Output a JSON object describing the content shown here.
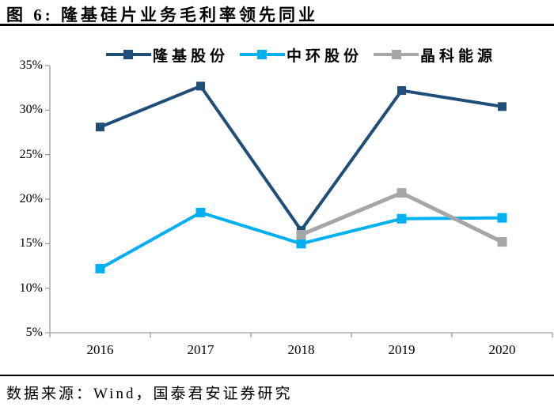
{
  "figure": {
    "title": "图 6:  隆基硅片业务毛利率领先同业",
    "source": "数据来源：Wind，国泰君安证券研究"
  },
  "chart_data": {
    "type": "line",
    "title": "隆基硅片业务毛利率领先同业",
    "categories": [
      "2016",
      "2017",
      "2018",
      "2019",
      "2020"
    ],
    "series": [
      {
        "name": "隆基股份",
        "color": "#1F4E79",
        "values": [
          28.1,
          32.7,
          16.5,
          32.2,
          30.4
        ]
      },
      {
        "name": "中环股份",
        "color": "#00B0F0",
        "values": [
          12.2,
          18.5,
          15.0,
          17.8,
          17.9
        ]
      },
      {
        "name": "晶科能源",
        "color": "#A6A6A6",
        "values": [
          null,
          null,
          16.0,
          20.7,
          15.2
        ]
      }
    ],
    "ylim": [
      5,
      35
    ],
    "ytick_labels": [
      "35%",
      "30%",
      "25%",
      "20%",
      "15%",
      "10%",
      "5%"
    ],
    "grid": false,
    "legend_position": "top",
    "marker": "square",
    "axis_color": "#9C9C9C"
  }
}
